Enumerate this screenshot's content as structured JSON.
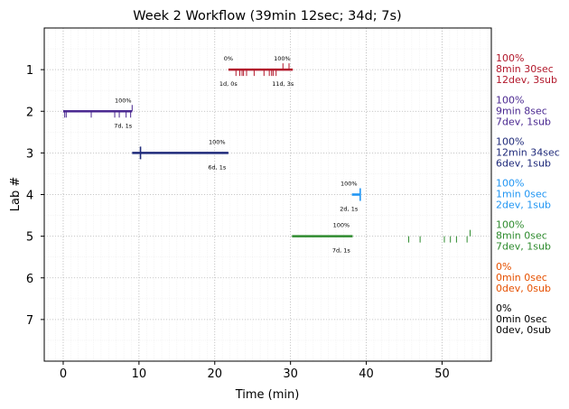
{
  "chart_data": {
    "type": "timeline",
    "title": "Week 2 Workflow (39min 12sec; 34d; 7s)",
    "xlabel": "Time (min)",
    "ylabel": "Lab #",
    "xlim": [
      -2.5,
      56.5
    ],
    "ylim": [
      0,
      8
    ],
    "y_inverted": true,
    "grid": true,
    "x_ticks": [
      0,
      10,
      20,
      30,
      40,
      50
    ],
    "x_tick_labels": [
      "0",
      "10",
      "20",
      "30",
      "40",
      "50"
    ],
    "y_ticks": [
      1,
      2,
      3,
      4,
      5,
      6,
      7
    ],
    "y_tick_labels": [
      "1",
      "2",
      "3",
      "4",
      "5",
      "6",
      "7"
    ],
    "labs": [
      {
        "lab": 1,
        "color": "#b2182b",
        "bar": [
          21.8,
          30.3
        ],
        "start_label": "0%",
        "end_label": "100%",
        "bottom_left_label": "1d, 0s",
        "bottom_right_label": "11d, 3s",
        "bottom_left_x": 21.8,
        "bottom_right_x": 29.0,
        "start_label_x": 21.8,
        "end_label_x": 28.9,
        "ticks_down": [
          22.8,
          23.3,
          23.6,
          23.8,
          24.2,
          25.2,
          26.5,
          27.2,
          27.5,
          27.7,
          28.1
        ],
        "ticks_up": [
          29.0,
          29.8
        ],
        "summary": [
          "100%",
          "8min 30sec",
          "12dev, 3sub"
        ]
      },
      {
        "lab": 2,
        "color": "#4b2991",
        "bar": [
          0,
          9.1
        ],
        "end_label": "100%",
        "end_label_x": 7.9,
        "bottom_right_label": "7d, 1s",
        "bottom_right_x": 7.9,
        "ticks_down": [
          0.2,
          0.4,
          3.7,
          6.8,
          7.4,
          8.3,
          8.9
        ],
        "ticks_up": [
          9.1
        ],
        "summary": [
          "100%",
          "9min 8sec",
          "7dev, 1sub"
        ]
      },
      {
        "lab": 3,
        "color": "#1f2a7a",
        "bar": [
          9.1,
          21.8
        ],
        "end_label": "100%",
        "end_label_x": 20.3,
        "bottom_right_label": "6d, 1s",
        "bottom_right_x": 20.3,
        "ticks_down": [],
        "ticks_both": [
          10.2
        ],
        "ticks_up": [],
        "summary": [
          "100%",
          "12min 34sec",
          "6dev, 1sub"
        ]
      },
      {
        "lab": 4,
        "color": "#2196f3",
        "bar": [
          38.1,
          39.2
        ],
        "end_label": "100%",
        "end_label_x": 37.7,
        "bottom_right_label": "2d, 1s",
        "bottom_right_x": 37.7,
        "ticks_down": [],
        "ticks_both": [
          39.2
        ],
        "ticks_up": [],
        "summary": [
          "100%",
          "1min 0sec",
          "2dev, 1sub"
        ]
      },
      {
        "lab": 5,
        "color": "#2e8b2e",
        "bar": [
          30.2,
          38.2
        ],
        "end_label": "100%",
        "end_label_x": 36.7,
        "bottom_right_label": "7d, 1s",
        "bottom_right_x": 36.7,
        "ticks_down": [
          45.6,
          47.1,
          50.3,
          51.1,
          51.9,
          53.3
        ],
        "ticks_up": [
          53.7
        ],
        "summary": [
          "100%",
          "8min 0sec",
          "7dev, 1sub"
        ]
      },
      {
        "lab": 6,
        "color": "#e65100",
        "summary": [
          "0%",
          "0min 0sec",
          "0dev, 0sub"
        ]
      },
      {
        "lab": 7,
        "color": "#000000",
        "summary": [
          "0%",
          "0min 0sec",
          "0dev, 0sub"
        ]
      }
    ]
  }
}
